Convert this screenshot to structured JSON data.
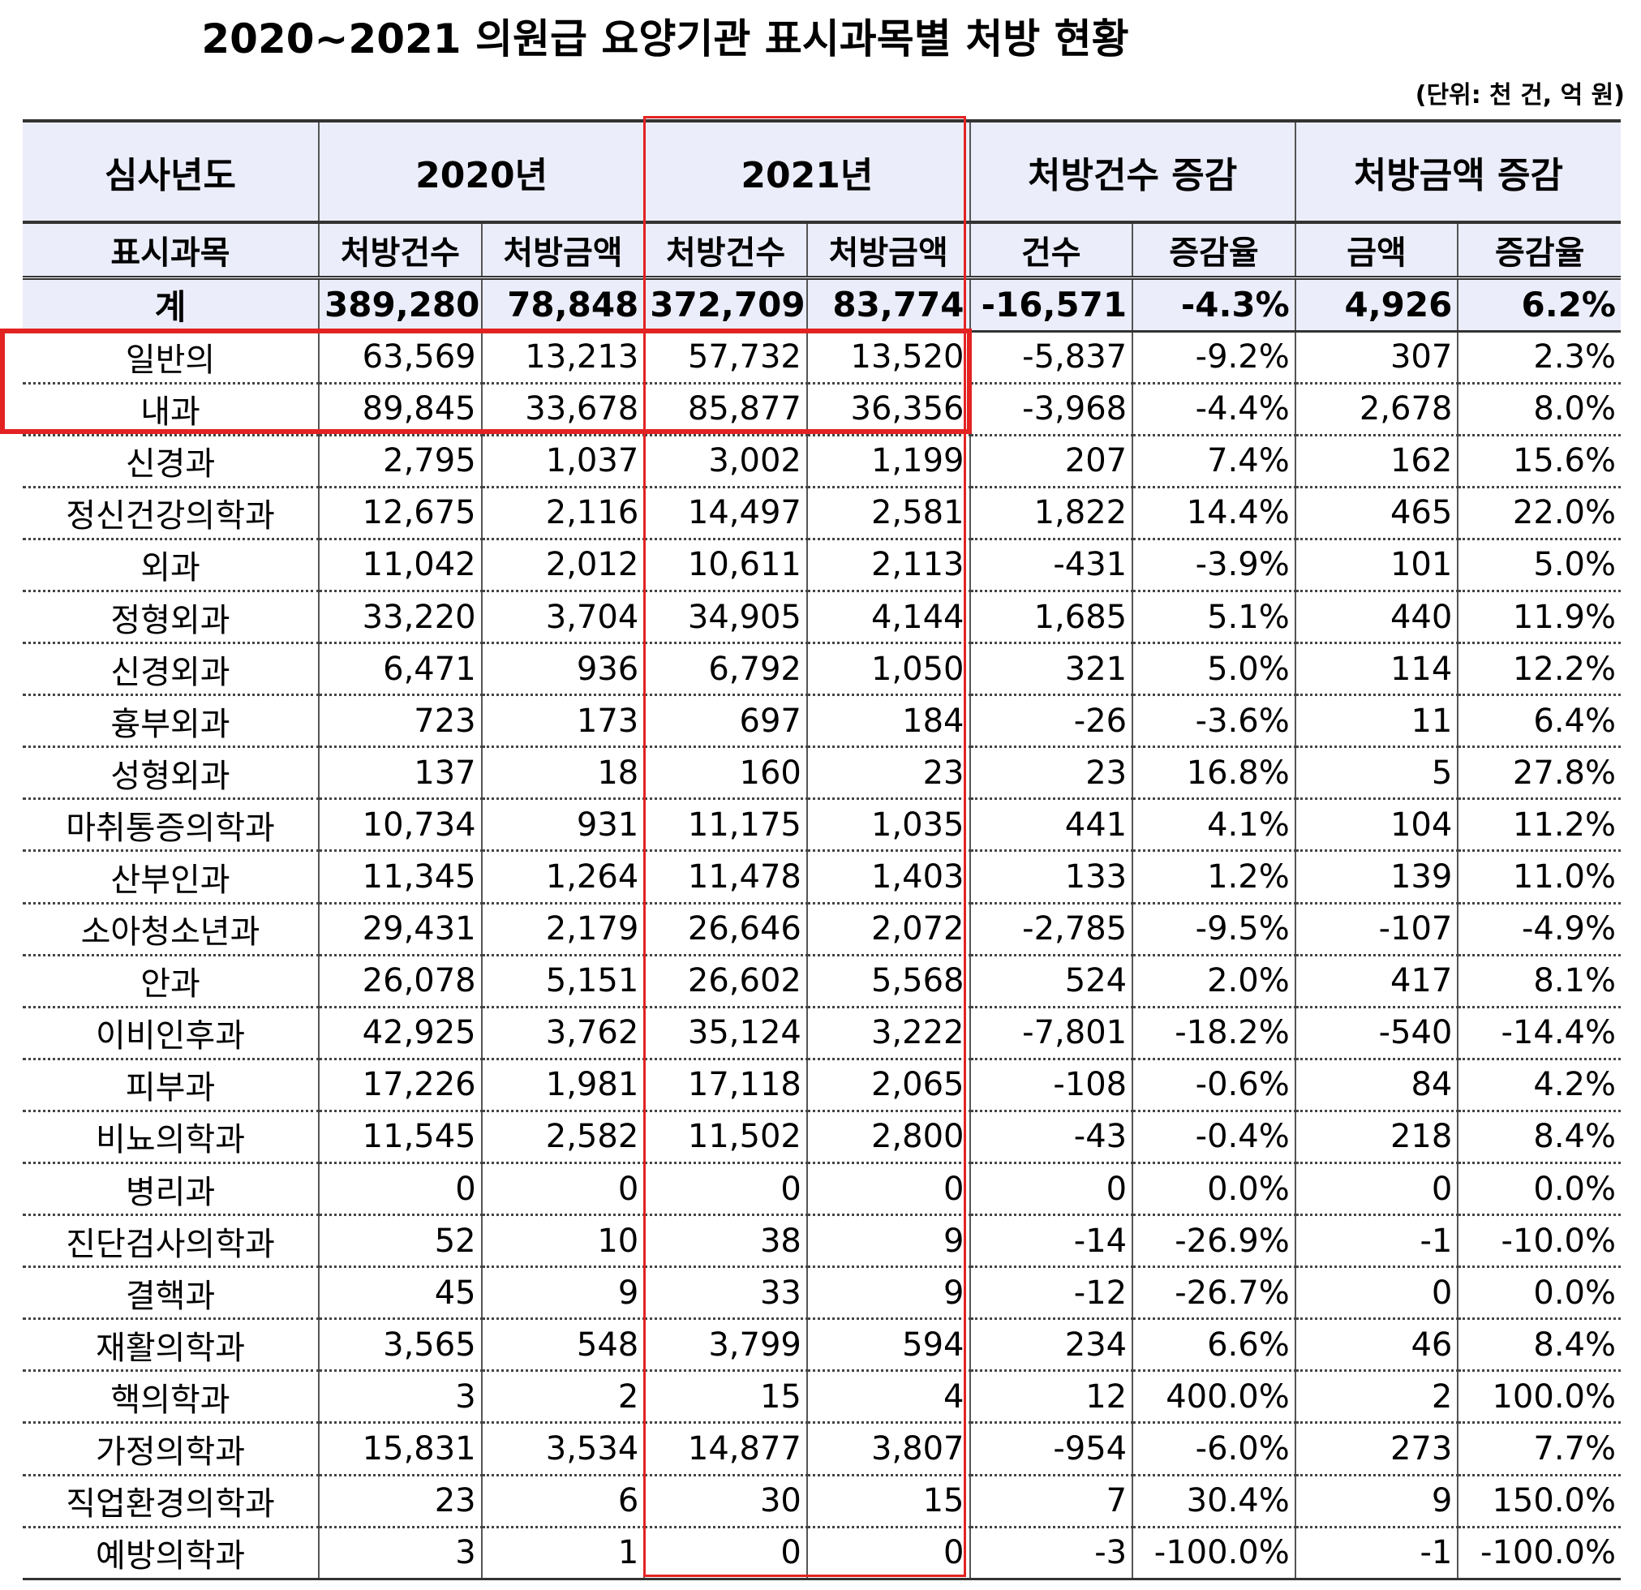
{
  "title": "2020~2021 의원급 요양기관 표시과목별 처방 현황",
  "unit_note": "(단위: 천 건, 억 원)",
  "header": {
    "row1": [
      "심사년도",
      "2020년",
      "2021년",
      "처방건수 증감",
      "처방금액 증감"
    ],
    "row2": [
      "표시과목",
      "처방건수",
      "처방금액",
      "처방건수",
      "처방금액",
      "건수",
      "증감율",
      "금액",
      "증감율"
    ]
  },
  "total": [
    "계",
    "389,280",
    "78,848",
    "372,709",
    "83,774",
    "-16,571",
    "-4.3%",
    "4,926",
    "6.2%"
  ],
  "rows": [
    [
      "일반의",
      "63,569",
      "13,213",
      "57,732",
      "13,520",
      "-5,837",
      "-9.2%",
      "307",
      "2.3%"
    ],
    [
      "내과",
      "89,845",
      "33,678",
      "85,877",
      "36,356",
      "-3,968",
      "-4.4%",
      "2,678",
      "8.0%"
    ],
    [
      "신경과",
      "2,795",
      "1,037",
      "3,002",
      "1,199",
      "207",
      "7.4%",
      "162",
      "15.6%"
    ],
    [
      "정신건강의학과",
      "12,675",
      "2,116",
      "14,497",
      "2,581",
      "1,822",
      "14.4%",
      "465",
      "22.0%"
    ],
    [
      "외과",
      "11,042",
      "2,012",
      "10,611",
      "2,113",
      "-431",
      "-3.9%",
      "101",
      "5.0%"
    ],
    [
      "정형외과",
      "33,220",
      "3,704",
      "34,905",
      "4,144",
      "1,685",
      "5.1%",
      "440",
      "11.9%"
    ],
    [
      "신경외과",
      "6,471",
      "936",
      "6,792",
      "1,050",
      "321",
      "5.0%",
      "114",
      "12.2%"
    ],
    [
      "흉부외과",
      "723",
      "173",
      "697",
      "184",
      "-26",
      "-3.6%",
      "11",
      "6.4%"
    ],
    [
      "성형외과",
      "137",
      "18",
      "160",
      "23",
      "23",
      "16.8%",
      "5",
      "27.8%"
    ],
    [
      "마취통증의학과",
      "10,734",
      "931",
      "11,175",
      "1,035",
      "441",
      "4.1%",
      "104",
      "11.2%"
    ],
    [
      "산부인과",
      "11,345",
      "1,264",
      "11,478",
      "1,403",
      "133",
      "1.2%",
      "139",
      "11.0%"
    ],
    [
      "소아청소년과",
      "29,431",
      "2,179",
      "26,646",
      "2,072",
      "-2,785",
      "-9.5%",
      "-107",
      "-4.9%"
    ],
    [
      "안과",
      "26,078",
      "5,151",
      "26,602",
      "5,568",
      "524",
      "2.0%",
      "417",
      "8.1%"
    ],
    [
      "이비인후과",
      "42,925",
      "3,762",
      "35,124",
      "3,222",
      "-7,801",
      "-18.2%",
      "-540",
      "-14.4%"
    ],
    [
      "피부과",
      "17,226",
      "1,981",
      "17,118",
      "2,065",
      "-108",
      "-0.6%",
      "84",
      "4.2%"
    ],
    [
      "비뇨의학과",
      "11,545",
      "2,582",
      "11,502",
      "2,800",
      "-43",
      "-0.4%",
      "218",
      "8.4%"
    ],
    [
      "병리과",
      "0",
      "0",
      "0",
      "0",
      "0",
      "0.0%",
      "0",
      "0.0%"
    ],
    [
      "진단검사의학과",
      "52",
      "10",
      "38",
      "9",
      "-14",
      "-26.9%",
      "-1",
      "-10.0%"
    ],
    [
      "결핵과",
      "45",
      "9",
      "33",
      "9",
      "-12",
      "-26.7%",
      "0",
      "0.0%"
    ],
    [
      "재활의학과",
      "3,565",
      "548",
      "3,799",
      "594",
      "234",
      "6.6%",
      "46",
      "8.4%"
    ],
    [
      "핵의학과",
      "3",
      "2",
      "15",
      "4",
      "12",
      "400.0%",
      "2",
      "100.0%"
    ],
    [
      "가정의학과",
      "15,831",
      "3,534",
      "14,877",
      "3,807",
      "-954",
      "-6.0%",
      "273",
      "7.7%"
    ],
    [
      "직업환경의학과",
      "23",
      "6",
      "30",
      "15",
      "7",
      "30.4%",
      "9",
      "150.0%"
    ],
    [
      "예방의학과",
      "3",
      "1",
      "0",
      "0",
      "-3",
      "-100.0%",
      "-1",
      "-100.0%"
    ]
  ],
  "colors": {
    "header_bg": "#ebedfa",
    "highlight": "#e32222"
  }
}
